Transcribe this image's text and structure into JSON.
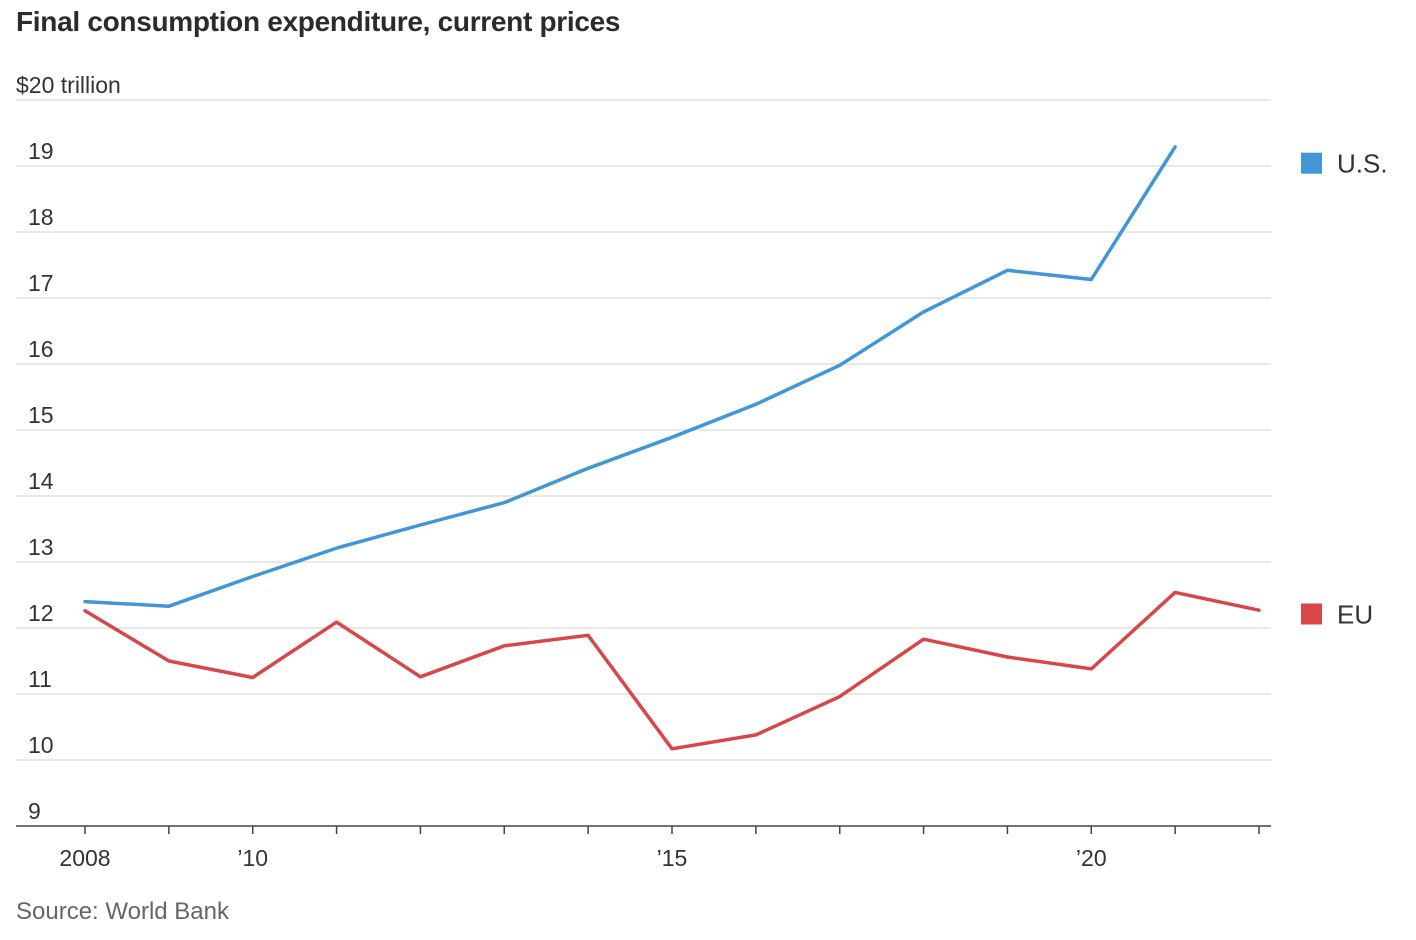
{
  "header": {
    "title": "Final consumption expenditure, current prices"
  },
  "footer": {
    "source": "Source: World Bank"
  },
  "chart_data": {
    "type": "line",
    "title": "Final consumption expenditure, current prices",
    "ylabel": "$20 trillion",
    "xlabel": "",
    "ylim": [
      9,
      20
    ],
    "xlim": [
      2008,
      2022
    ],
    "grid": true,
    "legend": "right",
    "y_ticks": [
      {
        "value": 20,
        "label": "$20 trillion"
      },
      {
        "value": 19,
        "label": "19"
      },
      {
        "value": 18,
        "label": "18"
      },
      {
        "value": 17,
        "label": "17"
      },
      {
        "value": 16,
        "label": "16"
      },
      {
        "value": 15,
        "label": "15"
      },
      {
        "value": 14,
        "label": "14"
      },
      {
        "value": 13,
        "label": "13"
      },
      {
        "value": 12,
        "label": "12"
      },
      {
        "value": 11,
        "label": "11"
      },
      {
        "value": 10,
        "label": "10"
      },
      {
        "value": 9,
        "label": "9"
      }
    ],
    "x_ticks": [
      2008,
      2009,
      2010,
      2011,
      2012,
      2013,
      2014,
      2015,
      2016,
      2017,
      2018,
      2019,
      2020,
      2021,
      2022
    ],
    "x_tick_labels": [
      {
        "value": 2008,
        "label": "2008"
      },
      {
        "value": 2010,
        "label": "’10"
      },
      {
        "value": 2015,
        "label": "’15"
      },
      {
        "value": 2020,
        "label": "’20"
      }
    ],
    "series": [
      {
        "name": "U.S.",
        "color": "#4196d6",
        "x": [
          2008,
          2009,
          2010,
          2011,
          2012,
          2013,
          2014,
          2015,
          2016,
          2017,
          2018,
          2019,
          2020,
          2021
        ],
        "values": [
          12.4,
          12.33,
          12.78,
          13.21,
          13.56,
          13.9,
          14.42,
          14.89,
          15.39,
          15.98,
          16.79,
          17.42,
          17.28,
          19.29
        ]
      },
      {
        "name": "EU",
        "color": "#d7474a",
        "x": [
          2008,
          2009,
          2010,
          2011,
          2012,
          2013,
          2014,
          2015,
          2016,
          2017,
          2018,
          2019,
          2020,
          2021,
          2022
        ],
        "values": [
          12.26,
          11.5,
          11.25,
          12.09,
          11.26,
          11.73,
          11.89,
          10.17,
          10.38,
          10.96,
          11.83,
          11.56,
          11.38,
          12.54,
          12.27
        ]
      }
    ]
  }
}
